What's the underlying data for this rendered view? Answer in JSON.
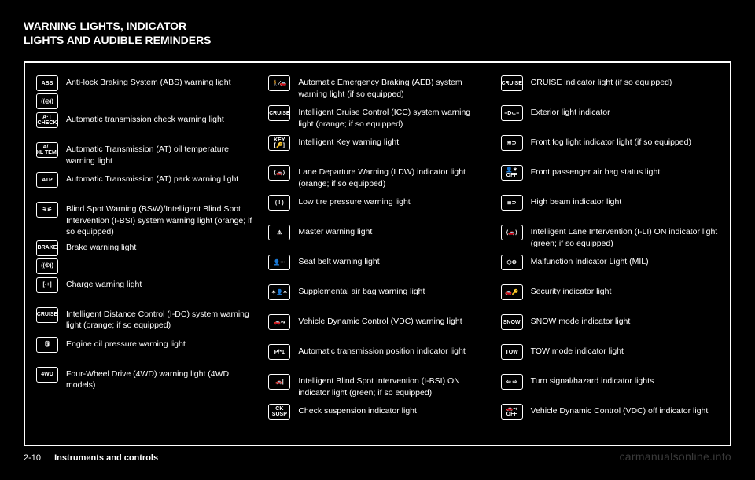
{
  "heading_line1": "WARNING LIGHTS, INDICATOR",
  "heading_line2": "LIGHTS AND AUDIBLE REMINDERS",
  "footer_page": "2-10",
  "footer_section": "Instruments and controls",
  "watermark": "carmanualsonline.info",
  "columns": [
    {
      "rows": [
        {
          "icon": "ABS",
          "desc": "Anti-lock Braking System (ABS) warning light",
          "pair_below": true
        },
        {
          "icon": "((◎))",
          "desc": ""
        },
        {
          "icon": "A·T\nCHECK",
          "desc": "Automatic transmission check warning light"
        },
        {
          "icon": "A/T\nOIL TEMP",
          "desc": "Automatic Transmission (AT) oil temperature warning light"
        },
        {
          "icon": "ATP",
          "desc": "Automatic Transmission (AT) park warning light"
        },
        {
          "icon": "⚞⚟",
          "desc": "Blind Spot Warning (BSW)/Intelligent Blind Spot Intervention (I-BSI) system warning light (orange; if so equipped)"
        },
        {
          "icon": "BRAKE",
          "desc": "Brake warning light",
          "pair_below": true
        },
        {
          "icon": "((①))",
          "desc": ""
        },
        {
          "icon": "[-+]",
          "desc": "Charge warning light"
        },
        {
          "icon": "CRUISE",
          "desc": "Intelligent Distance Control (I-DC) system warning light (orange; if so equipped)"
        },
        {
          "icon": "🛢",
          "desc": "Engine oil pressure warning light"
        },
        {
          "icon": "4WD",
          "desc": "Four-Wheel Drive (4WD) warning light (4WD models)"
        }
      ]
    },
    {
      "rows": [
        {
          "icon": "🚶⁄🚗",
          "desc": "Automatic Emergency Braking (AEB) system warning light (if so equipped)"
        },
        {
          "icon": "CRUISE",
          "desc": "Intelligent Cruise Control (ICC) system warning light (orange; if so equipped)"
        },
        {
          "icon": "KEY\n[🔑]",
          "desc": "Intelligent Key warning light"
        },
        {
          "icon": "⟨🚗⟩",
          "desc": "Lane Departure Warning (LDW) indicator light (orange; if so equipped)"
        },
        {
          "icon": "( ! )",
          "desc": "Low tire pressure warning light"
        },
        {
          "icon": "⚠",
          "desc": "Master warning light"
        },
        {
          "icon": "👤⋯",
          "desc": "Seat belt warning light"
        },
        {
          "icon": "✶👤✶",
          "desc": "Supplemental air bag warning light"
        },
        {
          "icon": "🚗⤳",
          "desc": "Vehicle Dynamic Control (VDC) warning light"
        },
        {
          "icon": "P/*1",
          "desc": "Automatic transmission position indicator light"
        },
        {
          "icon": "🚗|",
          "desc": "Intelligent Blind Spot Intervention (I-BSI) ON indicator light (green; if so equipped)"
        },
        {
          "icon": "CK\nSUSP",
          "desc": "Check suspension indicator light"
        }
      ]
    },
    {
      "rows": [
        {
          "icon": "CRUISE",
          "desc": "CRUISE indicator light (if so equipped)"
        },
        {
          "icon": "≡D⊂≡",
          "desc": "Exterior light indicator"
        },
        {
          "icon": "≋⊃",
          "desc": "Front fog light indicator light (if so equipped)"
        },
        {
          "icon": "👤✶\nOFF",
          "desc": "Front passenger air bag status light"
        },
        {
          "icon": "≣⊃",
          "desc": "High beam indicator light"
        },
        {
          "icon": "⟨🚗⟩",
          "desc": "Intelligent Lane Intervention (I-LI) ON indicator light (green; if so equipped)"
        },
        {
          "icon": "⬡⚙",
          "desc": "Malfunction Indicator Light (MIL)"
        },
        {
          "icon": "🚗🔑",
          "desc": "Security indicator light"
        },
        {
          "icon": "SNOW",
          "desc": "SNOW mode indicator light"
        },
        {
          "icon": "TOW",
          "desc": "TOW mode indicator light"
        },
        {
          "icon": "⇦ ⇨",
          "desc": "Turn signal/hazard indicator lights"
        },
        {
          "icon": "🚗⤳\nOFF",
          "desc": "Vehicle Dynamic Control (VDC) off indicator light"
        }
      ]
    }
  ]
}
